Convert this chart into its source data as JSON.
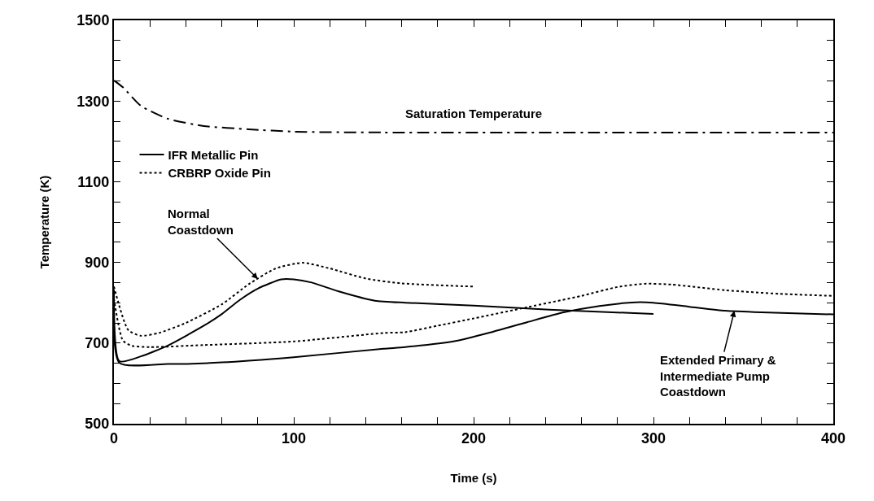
{
  "chart_data": {
    "type": "line",
    "xlabel": "Time (s)",
    "ylabel": "Temperature (K)",
    "xlim": [
      0,
      400
    ],
    "ylim": [
      500,
      1500
    ],
    "xticks": [
      0,
      {
        "value": 20,
        "label": null
      },
      {
        "value": 40,
        "label": null
      },
      {
        "value": 60,
        "label": null
      },
      {
        "value": 80,
        "label": null
      },
      100,
      {
        "value": 120,
        "label": null
      },
      {
        "value": 140,
        "label": null
      },
      {
        "value": 160,
        "label": null
      },
      {
        "value": 180,
        "label": null
      },
      200,
      {
        "value": 220,
        "label": null
      },
      {
        "value": 240,
        "label": null
      },
      {
        "value": 260,
        "label": null
      },
      {
        "value": 280,
        "label": null
      },
      300,
      {
        "value": 320,
        "label": null
      },
      {
        "value": 340,
        "label": null
      },
      {
        "value": 360,
        "label": null
      },
      {
        "value": 380,
        "label": null
      },
      400
    ],
    "yticks": [
      500,
      {
        "value": 550,
        "label": null
      },
      {
        "value": 600,
        "label": null
      },
      {
        "value": 650,
        "label": null
      },
      700,
      {
        "value": 750,
        "label": null
      },
      {
        "value": 800,
        "label": null
      },
      {
        "value": 850,
        "label": null
      },
      900,
      {
        "value": 950,
        "label": null
      },
      {
        "value": 1000,
        "label": null
      },
      {
        "value": 1050,
        "label": null
      },
      1100,
      {
        "value": 1150,
        "label": null
      },
      {
        "value": 1200,
        "label": null
      },
      {
        "value": 1250,
        "label": null
      },
      1300,
      {
        "value": 1350,
        "label": null
      },
      {
        "value": 1400,
        "label": null
      },
      {
        "value": 1450,
        "label": null
      },
      1500
    ],
    "legend": "top left",
    "marker": "none",
    "series": [
      {
        "color": "#000000",
        "line_style": "dashdot",
        "x": [
          0,
          5,
          15,
          30,
          50,
          75,
          100,
          150,
          400
        ],
        "values": [
          1351,
          1334,
          1288,
          1256,
          1238,
          1230,
          1224,
          1222,
          1222
        ]
      },
      {
        "name": "IFR Metallic Pin",
        "color": "#000000",
        "line_style": "solid",
        "x": [
          0,
          3,
          15,
          30,
          50,
          60,
          70,
          80,
          93,
          100,
          110,
          125,
          145,
          162,
          200,
          242,
          300
        ],
        "values": [
          832,
          655,
          667,
          694,
          743,
          772,
          807,
          835,
          858,
          858,
          850,
          828,
          805,
          800,
          793,
          783,
          772
        ]
      },
      {
        "name": "CRBRP Oxide Pin",
        "color": "#000000",
        "line_style": "dotted",
        "x": [
          0,
          8,
          15,
          25,
          40,
          60,
          75,
          90,
          105,
          120,
          140,
          160,
          200
        ],
        "values": [
          840,
          732,
          718,
          725,
          750,
          796,
          846,
          885,
          899,
          885,
          860,
          848,
          840
        ]
      },
      {
        "color": "#000000",
        "line_style": "solid",
        "x": [
          0,
          3,
          30,
          60,
          100,
          150,
          162,
          190,
          210,
          230,
          250,
          270,
          290,
          300,
          320,
          340,
          360,
          400
        ],
        "values": [
          832,
          651,
          648,
          652,
          665,
          686,
          690,
          705,
          727,
          752,
          776,
          792,
          801,
          800,
          790,
          780,
          776,
          771
        ]
      },
      {
        "color": "#000000",
        "line_style": "dotted",
        "x": [
          0,
          5,
          10,
          20,
          50,
          100,
          150,
          162,
          180,
          200,
          230,
          260,
          280,
          295,
          310,
          340,
          370,
          400
        ],
        "values": [
          810,
          706,
          693,
          690,
          695,
          704,
          725,
          727,
          743,
          761,
          789,
          817,
          839,
          847,
          845,
          831,
          822,
          817
        ]
      }
    ],
    "annotations": [
      "Saturation Temperature",
      {
        "text": "Normal\nCoastdown",
        "x": 80,
        "y": 859
      },
      {
        "text": "Extended Primary &\nIntermediate Pump\nCoastdown",
        "x": 345,
        "y": 780
      }
    ]
  }
}
